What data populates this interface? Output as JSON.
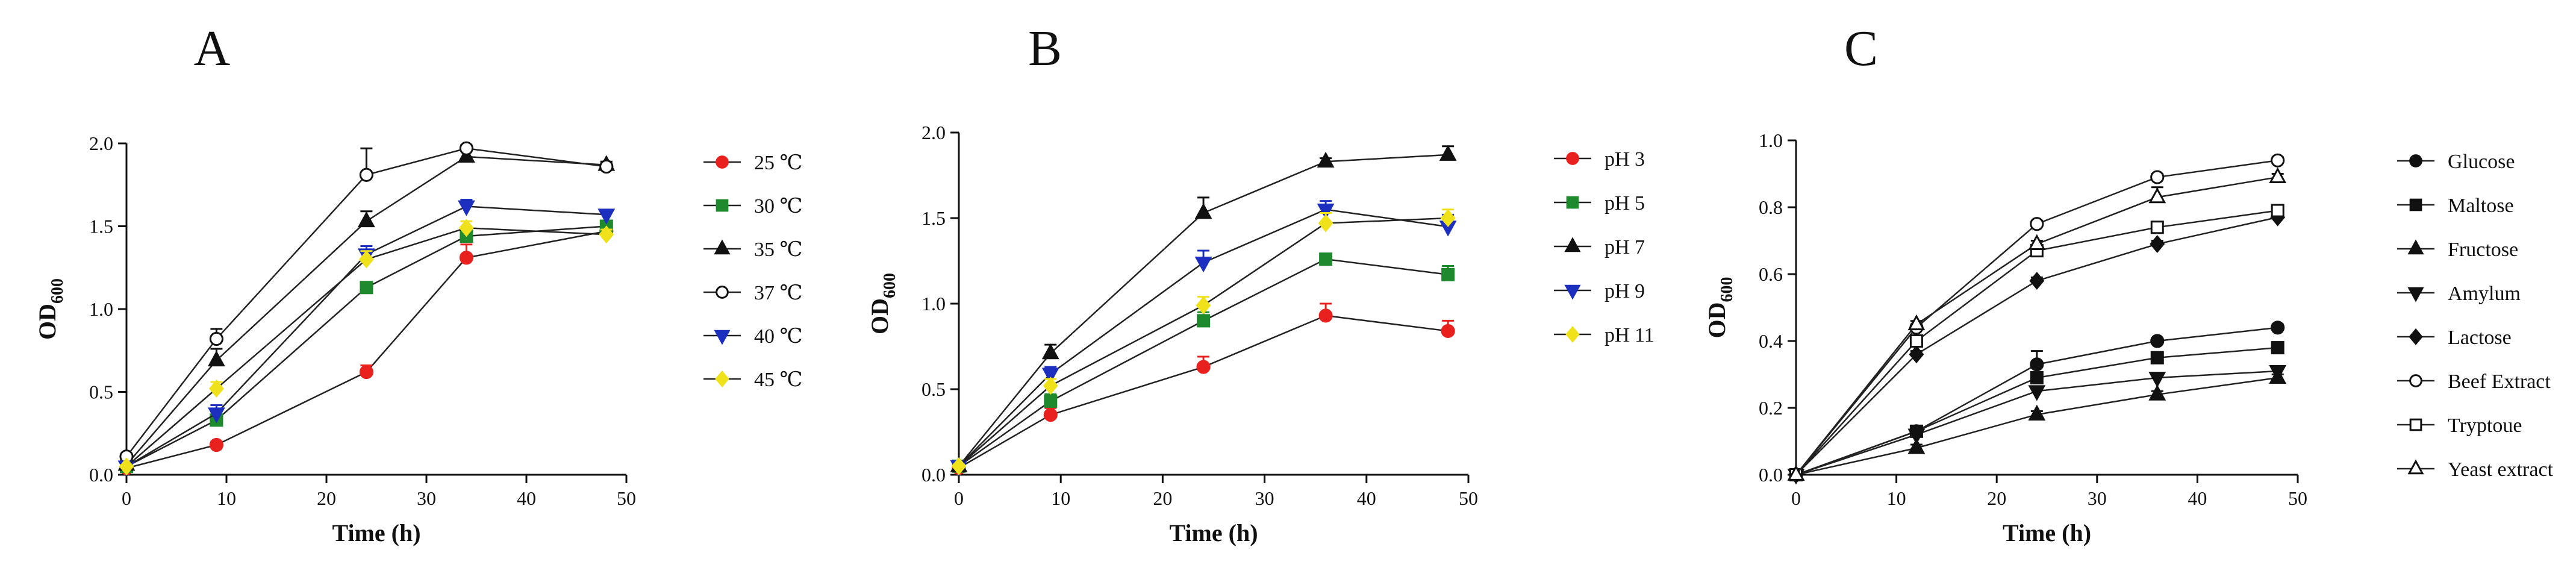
{
  "chart_data": [
    {
      "type": "line",
      "panel": "A",
      "xlabel": "Time (h)",
      "ylabel": "OD",
      "ylabel_sub": "600",
      "xlim": [
        0,
        50
      ],
      "ylim": [
        0,
        2.0
      ],
      "xticks": [
        0,
        10,
        20,
        30,
        40,
        50
      ],
      "yticks": [
        0.0,
        0.5,
        1.0,
        1.5,
        2.0
      ],
      "ytick_labels": [
        "0.0",
        "0.5",
        "1.0",
        "1.5",
        "2.0"
      ],
      "xtick_labels": [
        "0",
        "10",
        "20",
        "30",
        "40",
        "50"
      ],
      "x": [
        0,
        9,
        24,
        34,
        48
      ],
      "series": [
        {
          "name": "25 ℃",
          "color": "#e8211e",
          "marker": "circle",
          "fill": true,
          "values": [
            0.04,
            0.18,
            0.62,
            1.31,
            1.47
          ],
          "errors": [
            0.01,
            0.02,
            0.04,
            0.08,
            0.04
          ]
        },
        {
          "name": "30 ℃",
          "color": "#1f8a2d",
          "marker": "square",
          "fill": true,
          "values": [
            0.05,
            0.33,
            1.13,
            1.44,
            1.5
          ],
          "errors": [
            0.01,
            0.06,
            0.03,
            0.05,
            0.03
          ]
        },
        {
          "name": "35 ℃",
          "color": "#111111",
          "marker": "triangle-up",
          "fill": true,
          "values": [
            0.06,
            0.69,
            1.53,
            1.92,
            1.87
          ],
          "errors": [
            0.01,
            0.07,
            0.06,
            0.06,
            0.02
          ]
        },
        {
          "name": "37 ℃",
          "color": "#111111",
          "marker": "circle",
          "fill": false,
          "values": [
            0.11,
            0.82,
            1.81,
            1.97,
            1.86
          ],
          "errors": [
            0.01,
            0.06,
            0.16,
            0.02,
            0.02
          ]
        },
        {
          "name": "40 ℃",
          "color": "#1c2fbf",
          "marker": "triangle-down",
          "fill": true,
          "values": [
            0.05,
            0.37,
            1.33,
            1.62,
            1.57
          ],
          "errors": [
            0.01,
            0.05,
            0.05,
            0.04,
            0.02
          ]
        },
        {
          "name": "45 ℃",
          "color": "#f0e21a",
          "marker": "diamond",
          "fill": true,
          "values": [
            0.05,
            0.52,
            1.3,
            1.49,
            1.45
          ],
          "errors": [
            0.01,
            0.04,
            0.05,
            0.04,
            0.03
          ]
        }
      ]
    },
    {
      "type": "line",
      "panel": "B",
      "xlabel": "Time (h)",
      "ylabel": "OD",
      "ylabel_sub": "600",
      "xlim": [
        0,
        50
      ],
      "ylim": [
        0,
        2.0
      ],
      "xticks": [
        0,
        10,
        20,
        30,
        40,
        50
      ],
      "yticks": [
        0.0,
        0.5,
        1.0,
        1.5,
        2.0
      ],
      "ytick_labels": [
        "0.0",
        "0.5",
        "1.0",
        "1.5",
        "2.0"
      ],
      "xtick_labels": [
        "0",
        "10",
        "20",
        "30",
        "40",
        "50"
      ],
      "x": [
        0,
        9,
        24,
        36,
        48
      ],
      "series": [
        {
          "name": "pH 3",
          "color": "#e8211e",
          "marker": "circle",
          "fill": true,
          "values": [
            0.04,
            0.35,
            0.63,
            0.93,
            0.84
          ],
          "errors": [
            0.01,
            0.04,
            0.06,
            0.07,
            0.06
          ]
        },
        {
          "name": "pH 5",
          "color": "#1f8a2d",
          "marker": "square",
          "fill": true,
          "values": [
            0.05,
            0.43,
            0.9,
            1.26,
            1.17
          ],
          "errors": [
            0.01,
            0.04,
            0.05,
            0.03,
            0.05
          ]
        },
        {
          "name": "pH 7",
          "color": "#111111",
          "marker": "triangle-up",
          "fill": true,
          "values": [
            0.05,
            0.71,
            1.53,
            1.83,
            1.87
          ],
          "errors": [
            0.01,
            0.05,
            0.09,
            0.02,
            0.05
          ]
        },
        {
          "name": "pH 9",
          "color": "#1c2fbf",
          "marker": "triangle-down",
          "fill": true,
          "values": [
            0.05,
            0.59,
            1.24,
            1.55,
            1.45
          ],
          "errors": [
            0.01,
            0.04,
            0.07,
            0.05,
            0.07
          ]
        },
        {
          "name": "pH 11",
          "color": "#f0e21a",
          "marker": "diamond",
          "fill": true,
          "values": [
            0.05,
            0.52,
            0.99,
            1.47,
            1.5
          ],
          "errors": [
            0.01,
            0.04,
            0.05,
            0.06,
            0.05
          ]
        }
      ]
    },
    {
      "type": "line",
      "panel": "C",
      "xlabel": "Time (h)",
      "ylabel": "OD",
      "ylabel_sub": "600",
      "xlim": [
        0,
        50
      ],
      "ylim": [
        0,
        1.0
      ],
      "xticks": [
        0,
        10,
        20,
        30,
        40,
        50
      ],
      "yticks": [
        0.0,
        0.2,
        0.4,
        0.6,
        0.8,
        1.0
      ],
      "ytick_labels": [
        "0.0",
        "0.2",
        "0.4",
        "0.6",
        "0.8",
        "1.0"
      ],
      "xtick_labels": [
        "0",
        "10",
        "20",
        "30",
        "40",
        "50"
      ],
      "x": [
        0,
        12,
        24,
        36,
        48
      ],
      "series": [
        {
          "name": "Glucose",
          "color": "#111111",
          "marker": "circle",
          "fill": true,
          "values": [
            0.0,
            0.13,
            0.33,
            0.4,
            0.44
          ],
          "errors": [
            0.0,
            0.01,
            0.04,
            0.01,
            0.01
          ]
        },
        {
          "name": "Maltose",
          "color": "#111111",
          "marker": "square",
          "fill": true,
          "values": [
            0.0,
            0.13,
            0.29,
            0.35,
            0.38
          ],
          "errors": [
            0.0,
            0.01,
            0.01,
            0.01,
            0.01
          ]
        },
        {
          "name": "Fructose",
          "color": "#111111",
          "marker": "triangle-up",
          "fill": true,
          "values": [
            0.0,
            0.08,
            0.18,
            0.24,
            0.29
          ],
          "errors": [
            0.0,
            0.01,
            0.01,
            0.01,
            0.01
          ]
        },
        {
          "name": "Amylum",
          "color": "#111111",
          "marker": "triangle-down",
          "fill": true,
          "values": [
            0.0,
            0.12,
            0.25,
            0.29,
            0.31
          ],
          "errors": [
            0.0,
            0.01,
            0.01,
            0.01,
            0.01
          ]
        },
        {
          "name": "Lactose",
          "color": "#111111",
          "marker": "diamond",
          "fill": true,
          "values": [
            0.0,
            0.36,
            0.58,
            0.69,
            0.77
          ],
          "errors": [
            0.0,
            0.01,
            0.01,
            0.01,
            0.01
          ]
        },
        {
          "name": "Beef Extract",
          "color": "#111111",
          "marker": "circle",
          "fill": false,
          "values": [
            0.0,
            0.44,
            0.75,
            0.89,
            0.94
          ],
          "errors": [
            0.0,
            0.01,
            0.01,
            0.01,
            0.01
          ]
        },
        {
          "name": "Tryptoue",
          "color": "#111111",
          "marker": "square",
          "fill": false,
          "values": [
            0.0,
            0.4,
            0.67,
            0.74,
            0.79
          ],
          "errors": [
            0.0,
            0.01,
            0.01,
            0.01,
            0.01
          ]
        },
        {
          "name": "Yeast extract",
          "color": "#111111",
          "marker": "triangle-up",
          "fill": false,
          "values": [
            0.0,
            0.45,
            0.69,
            0.83,
            0.89
          ],
          "errors": [
            0.0,
            0.01,
            0.01,
            0.03,
            0.01
          ]
        }
      ]
    }
  ]
}
